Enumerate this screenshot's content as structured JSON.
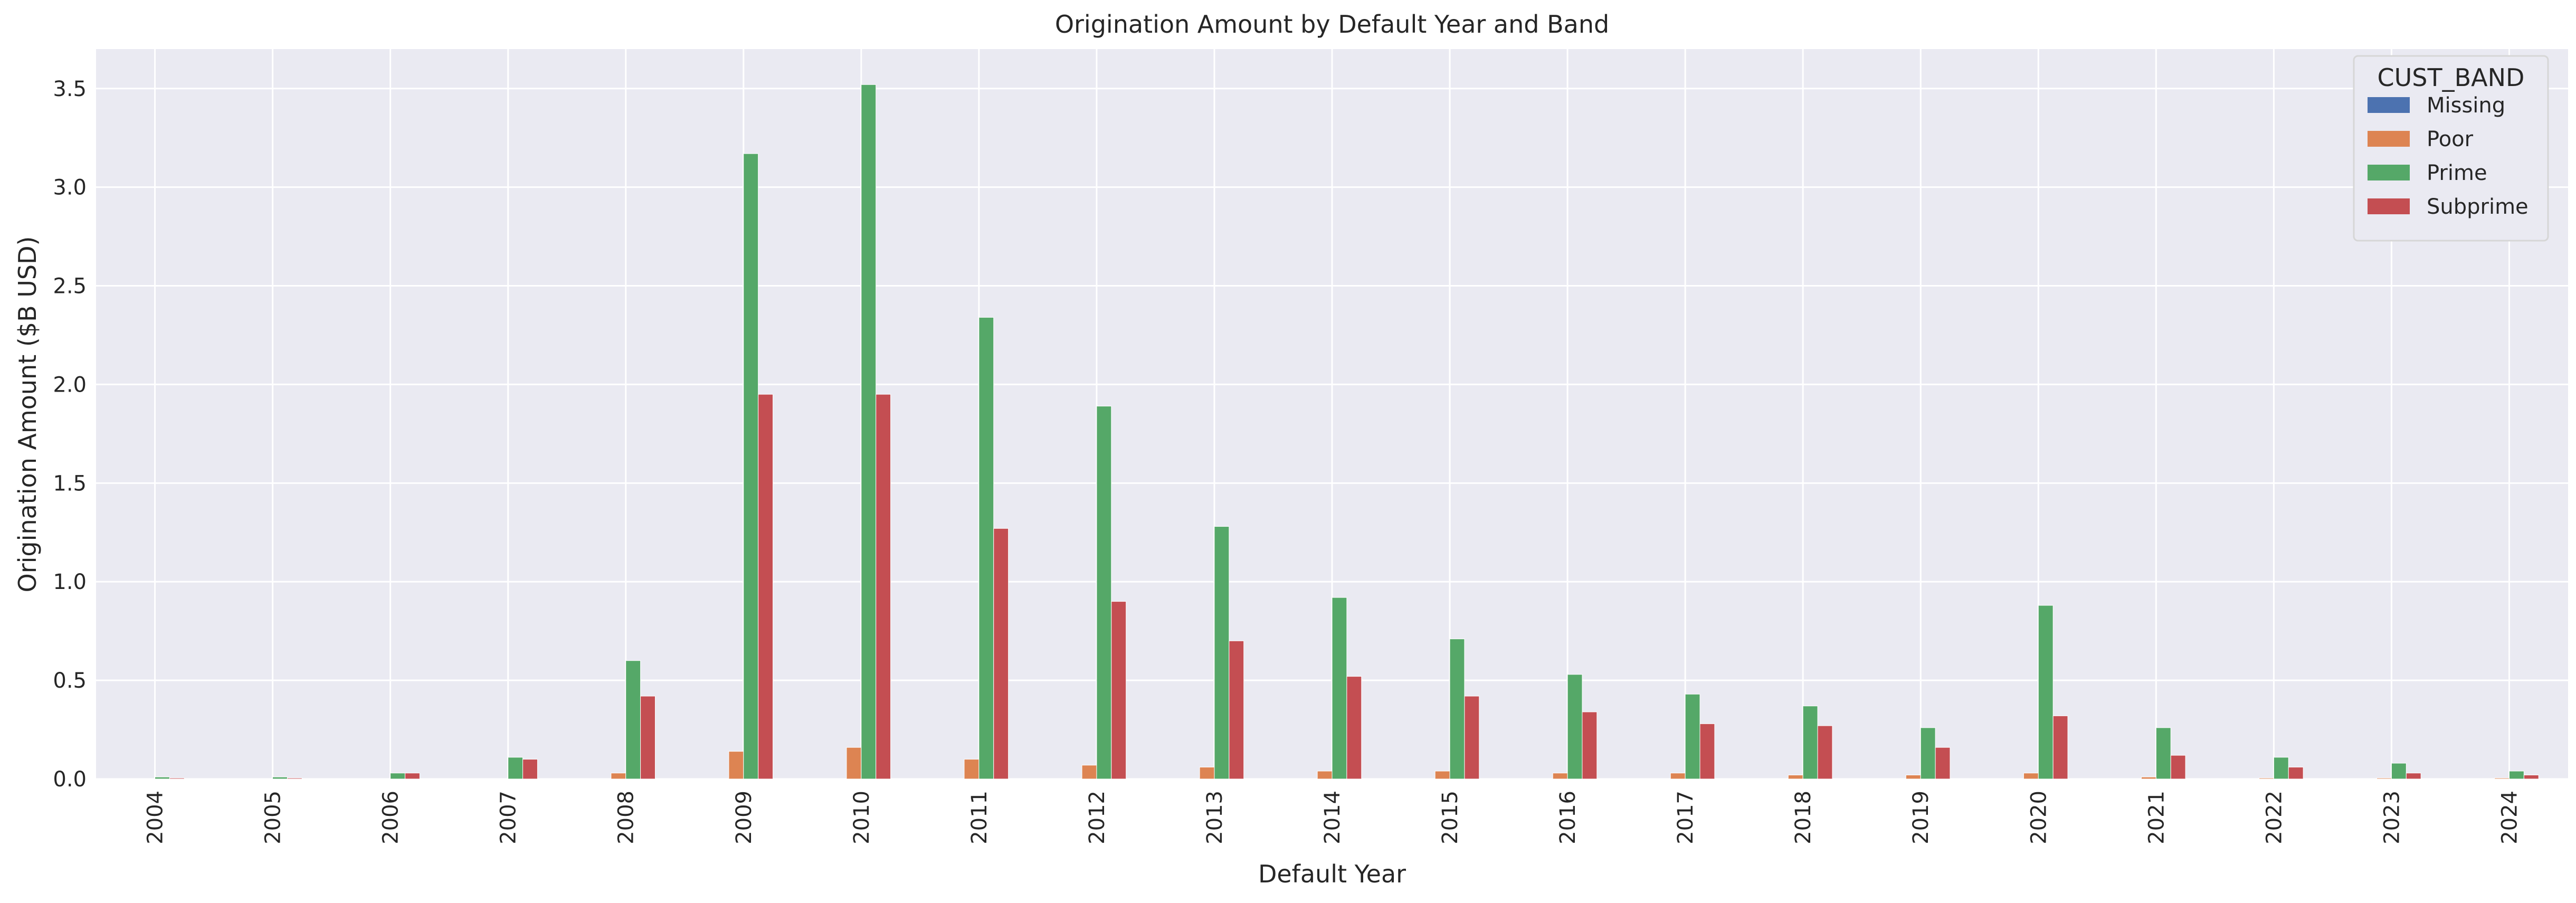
{
  "chart_data": {
    "type": "bar",
    "title": "Origination Amount by Default Year and Band",
    "xlabel": "Default Year",
    "ylabel": "Origination Amount ($B USD)",
    "ylim": [
      0,
      3.7
    ],
    "yticks": [
      "0.0",
      "0.5",
      "1.0",
      "1.5",
      "2.0",
      "2.5",
      "3.0",
      "3.5"
    ],
    "grid": true,
    "legend_title": "CUST_BAND",
    "legend_position": "top-right",
    "categories": [
      "2004",
      "2005",
      "2006",
      "2007",
      "2008",
      "2009",
      "2010",
      "2011",
      "2012",
      "2013",
      "2014",
      "2015",
      "2016",
      "2017",
      "2018",
      "2019",
      "2020",
      "2021",
      "2022",
      "2023",
      "2024"
    ],
    "series": [
      {
        "name": "Missing",
        "color": "#4c72b0",
        "values": [
          0.0,
          0.0,
          0.0,
          0.0,
          0.0,
          0.0,
          0.0,
          0.0,
          0.0,
          0.0,
          0.0,
          0.0,
          0.0,
          0.0,
          0.0,
          0.0,
          0.0,
          0.0,
          0.0,
          0.0,
          0.0
        ]
      },
      {
        "name": "Poor",
        "color": "#dd8452",
        "values": [
          0.0,
          0.0,
          0.0,
          0.0,
          0.03,
          0.14,
          0.16,
          0.1,
          0.07,
          0.06,
          0.04,
          0.04,
          0.03,
          0.03,
          0.02,
          0.02,
          0.03,
          0.01,
          0.005,
          0.005,
          0.005
        ]
      },
      {
        "name": "Prime",
        "color": "#55a868",
        "values": [
          0.01,
          0.01,
          0.03,
          0.11,
          0.6,
          3.17,
          3.52,
          2.34,
          1.89,
          1.28,
          0.92,
          0.71,
          0.53,
          0.43,
          0.37,
          0.26,
          0.88,
          0.26,
          0.11,
          0.08,
          0.04
        ]
      },
      {
        "name": "Subprime",
        "color": "#c44e52",
        "values": [
          0.005,
          0.005,
          0.03,
          0.1,
          0.42,
          1.95,
          1.95,
          1.27,
          0.9,
          0.7,
          0.52,
          0.42,
          0.34,
          0.28,
          0.27,
          0.16,
          0.32,
          0.12,
          0.06,
          0.03,
          0.02
        ]
      }
    ]
  }
}
